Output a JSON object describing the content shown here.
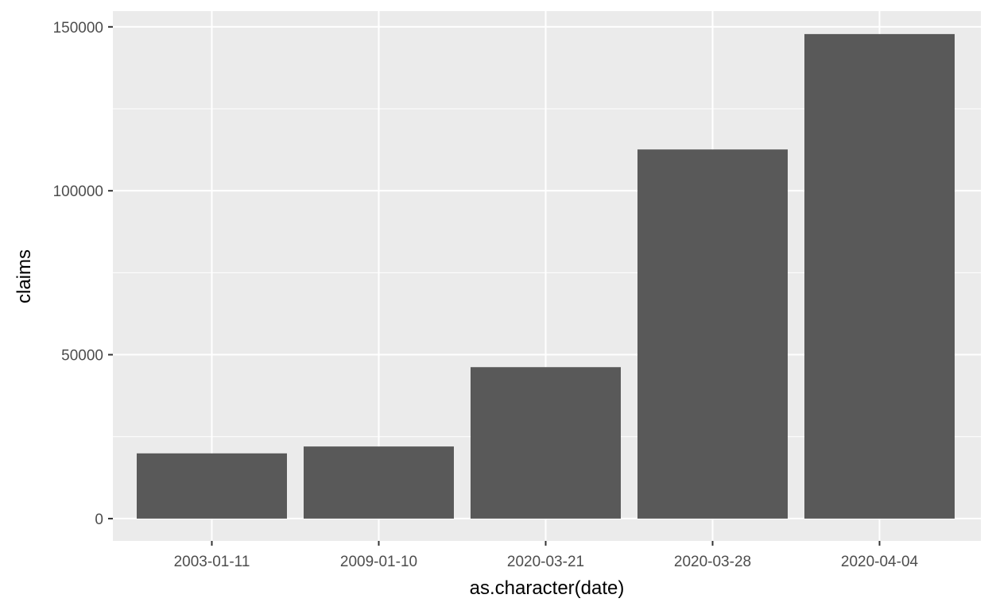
{
  "chart_data": {
    "type": "bar",
    "title": "",
    "xlabel": "as.character(date)",
    "ylabel": "claims",
    "categories": [
      "2003-01-11",
      "2009-01-10",
      "2020-03-21",
      "2020-03-28",
      "2020-04-04"
    ],
    "values": [
      19900,
      22000,
      46200,
      112600,
      147800
    ],
    "ylim": [
      -6800,
      154800
    ],
    "yticks": [
      0,
      50000,
      100000,
      150000
    ],
    "ytick_labels": [
      "0",
      "50000",
      "100000",
      "150000"
    ],
    "grid": true,
    "colors": {
      "panel": "#ebebeb",
      "grid_major": "#ffffff",
      "bar": "#595959",
      "tick_text": "#4d4d4d",
      "tick_mark": "#333333"
    }
  }
}
